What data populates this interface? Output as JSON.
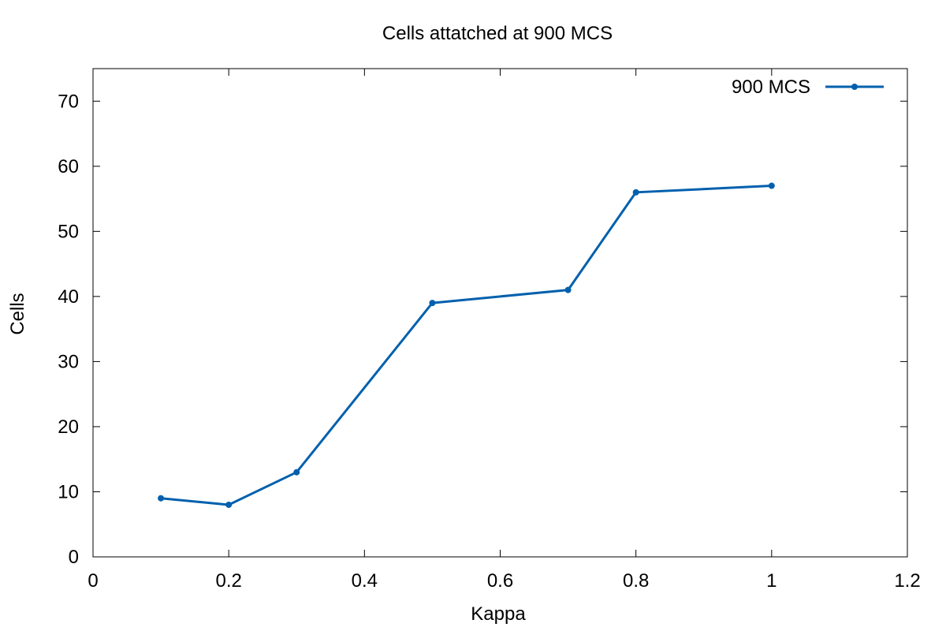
{
  "chart_data": {
    "type": "line",
    "title": "Cells attatched at 900 MCS",
    "xlabel": "Kappa",
    "ylabel": "Cells",
    "xlim": [
      0,
      1.2
    ],
    "ylim": [
      0,
      75
    ],
    "xticks": [
      0,
      0.2,
      0.4,
      0.6,
      0.8,
      1,
      1.2
    ],
    "xtick_labels": [
      "0",
      "0.2",
      "0.4",
      "0.6",
      "0.8",
      "1",
      "1.2"
    ],
    "yticks": [
      0,
      10,
      20,
      30,
      40,
      50,
      60,
      70
    ],
    "ytick_labels": [
      "0",
      "10",
      "20",
      "30",
      "40",
      "50",
      "60",
      "70"
    ],
    "grid": false,
    "legend_position": "top-right",
    "series": [
      {
        "name": "900 MCS",
        "color": "#0060ad",
        "x": [
          0.1,
          0.2,
          0.3,
          0.5,
          0.7,
          0.8,
          1.0
        ],
        "y": [
          9,
          8,
          13,
          39,
          41,
          56,
          57
        ]
      }
    ]
  }
}
